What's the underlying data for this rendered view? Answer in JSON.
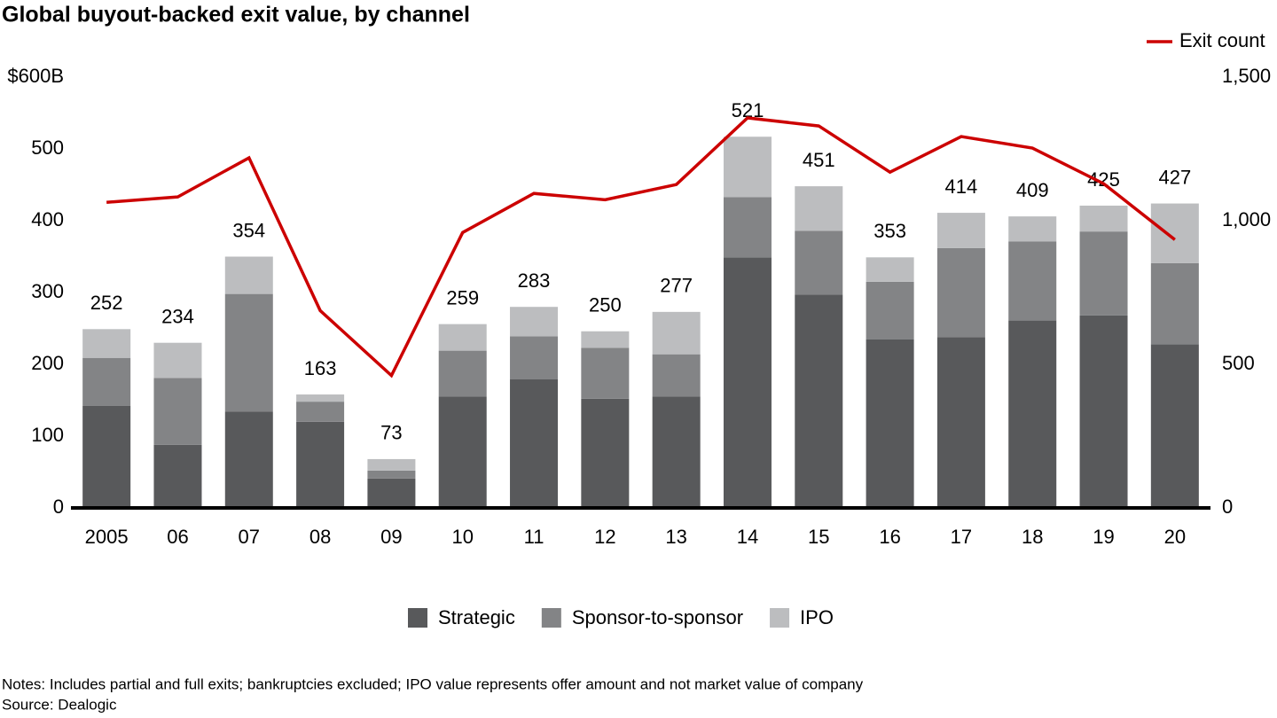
{
  "chart_data": {
    "type": "bar",
    "title": "Global buyout-backed exit value, by channel",
    "categories": [
      "2005",
      "06",
      "07",
      "08",
      "09",
      "10",
      "11",
      "12",
      "13",
      "14",
      "15",
      "16",
      "17",
      "18",
      "19",
      "20"
    ],
    "series": [
      {
        "name": "Strategic",
        "color": "#58595b",
        "values": [
          142,
          88,
          134,
          120,
          41,
          155,
          179,
          152,
          155,
          349,
          297,
          235,
          238,
          261,
          268,
          228
        ]
      },
      {
        "name": "Sponsor-to-sponsor",
        "color": "#838486",
        "values": [
          67,
          93,
          164,
          28,
          11,
          64,
          60,
          71,
          59,
          84,
          89,
          80,
          124,
          110,
          117,
          113
        ]
      },
      {
        "name": "IPO",
        "color": "#bcbdbf",
        "values": [
          40,
          49,
          52,
          10,
          16,
          37,
          41,
          23,
          59,
          84,
          62,
          34,
          49,
          35,
          36,
          83
        ]
      },
      {
        "name": "Exit count",
        "color": "#cc0000",
        "axis": "y2",
        "type": "line",
        "values": [
          1064,
          1083,
          1219,
          687,
          461,
          959,
          1095,
          1073,
          1126,
          1358,
          1330,
          1169,
          1293,
          1253,
          1129,
          934
        ]
      }
    ],
    "totals": [
      252,
      234,
      354,
      163,
      73,
      259,
      283,
      250,
      277,
      521,
      451,
      353,
      414,
      409,
      425,
      427
    ],
    "ylim": [
      0,
      600
    ],
    "yticks": [
      0,
      100,
      200,
      300,
      400,
      500,
      {
        "value": 600,
        "label": "$600B"
      }
    ],
    "y2lim": [
      0,
      1500
    ],
    "y2ticks": [
      0,
      500,
      {
        "value": 1000,
        "label": "1,000"
      },
      {
        "value": 1500,
        "label": "1,500"
      }
    ],
    "grid": false,
    "notes": "Notes: Includes partial and full exits; bankruptcies excluded; IPO value represents offer amount and not market value of company",
    "source": "Source: Dealogic"
  }
}
